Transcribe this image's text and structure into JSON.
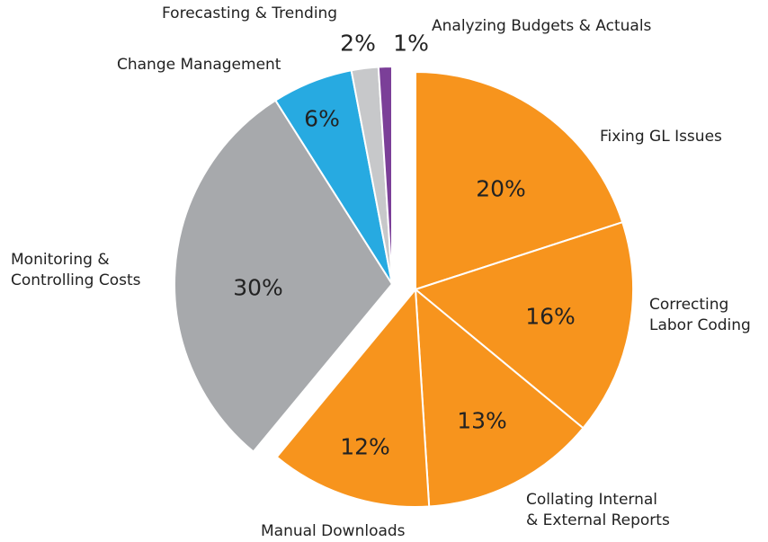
{
  "chart_data": {
    "type": "pie",
    "categories": [
      "Fixing GL Issues",
      "Correcting\nLabor Coding",
      "Collating Internal\n& External Reports",
      "Manual Downloads",
      "Monitoring &\nControlling Costs",
      "Change Management",
      "Forecasting & Trending",
      "Analyzing Budgets & Actuals"
    ],
    "values": [
      20,
      16,
      13,
      12,
      30,
      6,
      2,
      1
    ],
    "value_labels": [
      "20%",
      "16%",
      "13%",
      "12%",
      "30%",
      "6%",
      "2%",
      "1%"
    ],
    "colors": [
      "#f7941d",
      "#f7941d",
      "#f7941d",
      "#f7941d",
      "#a7a9ac",
      "#27aae1",
      "#c7c8ca",
      "#7b3f98"
    ]
  }
}
